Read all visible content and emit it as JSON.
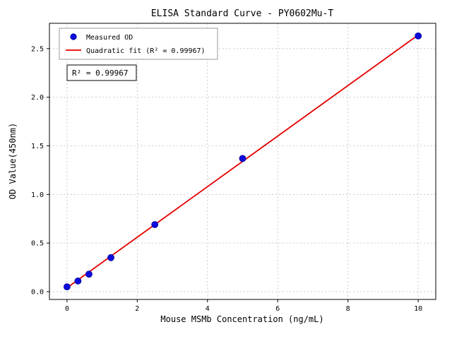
{
  "chart_data": {
    "type": "scatter",
    "title": "ELISA Standard Curve - PY0602Mu-T",
    "xlabel": "Mouse MSMb Concentration (ng/mL)",
    "ylabel": "OD Value(450nm)",
    "xlim": [
      -0.5,
      10.5
    ],
    "ylim": [
      -0.08,
      2.76
    ],
    "grid": true,
    "annotation": "R² = 0.99967",
    "legend": {
      "position": "upper-left",
      "measured": "Measured OD",
      "fit": "Quadratic fit (R² = 0.99967)"
    },
    "colors": {
      "points": "#0b0bdb",
      "points_edge": "#0000a0",
      "fit_line": "#e50000",
      "grid": "#bfbfbf"
    },
    "xticks": [
      {
        "v": 0,
        "label": "0"
      },
      {
        "v": 2,
        "label": "2"
      },
      {
        "v": 4,
        "label": "4"
      },
      {
        "v": 6,
        "label": "6"
      },
      {
        "v": 8,
        "label": "8"
      },
      {
        "v": 10,
        "label": "10"
      }
    ],
    "yticks": [
      {
        "v": 0.0,
        "label": "0.0"
      },
      {
        "v": 0.5,
        "label": "0.5"
      },
      {
        "v": 1.0,
        "label": "1.0"
      },
      {
        "v": 1.5,
        "label": "1.5"
      },
      {
        "v": 2.0,
        "label": "2.0"
      },
      {
        "v": 2.5,
        "label": "2.5"
      }
    ],
    "series": [
      {
        "name": "Measured OD",
        "type": "scatter",
        "points": [
          {
            "x": 0,
            "y": 0.05
          },
          {
            "x": 0.3125,
            "y": 0.11
          },
          {
            "x": 0.625,
            "y": 0.18
          },
          {
            "x": 1.25,
            "y": 0.35
          },
          {
            "x": 2.5,
            "y": 0.69
          },
          {
            "x": 5,
            "y": 1.37
          },
          {
            "x": 10,
            "y": 2.63
          }
        ]
      },
      {
        "name": "Quadratic fit",
        "type": "line",
        "points": [
          {
            "x": 0,
            "y": 0.04
          },
          {
            "x": 2.5,
            "y": 0.69
          },
          {
            "x": 5,
            "y": 1.34
          },
          {
            "x": 7.5,
            "y": 1.99
          },
          {
            "x": 10,
            "y": 2.64
          }
        ]
      }
    ]
  }
}
